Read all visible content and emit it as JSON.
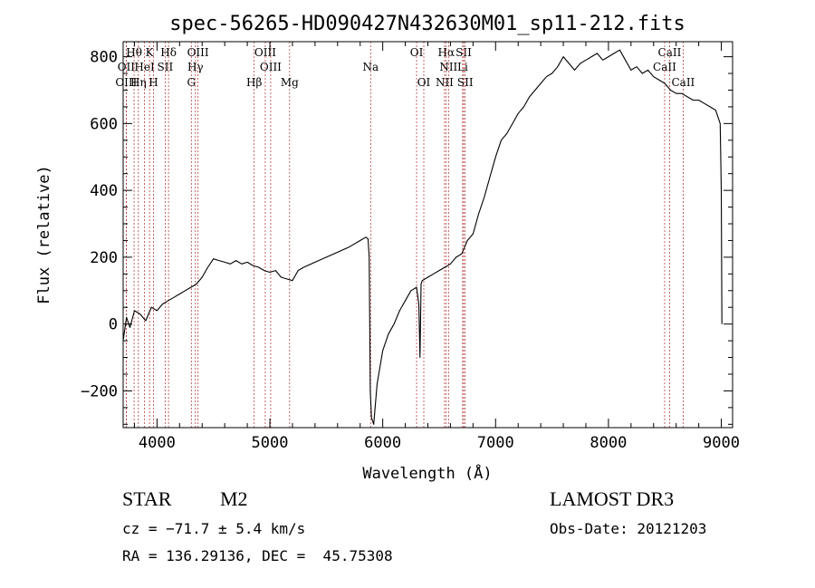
{
  "chart_data": {
    "type": "line",
    "title": "spec-56265-HD090427N432630M01_sp11-212.fits",
    "xlabel": "Wavelength (Å)",
    "ylabel": "Flux (relative)",
    "xlim": [
      3700,
      9100
    ],
    "ylim": [
      -310,
      845
    ],
    "xticks": [
      4000,
      5000,
      6000,
      7000,
      8000,
      9000
    ],
    "xtick_labels": [
      "4000",
      "5000",
      "6000",
      "7000",
      "8000",
      "9000"
    ],
    "yticks": [
      -200,
      0,
      200,
      400,
      600,
      800
    ],
    "ytick_labels": [
      "−200",
      "0",
      "200",
      "400",
      "600",
      "800"
    ],
    "series": [
      {
        "name": "spectrum",
        "x": [
          3700,
          3730,
          3760,
          3800,
          3850,
          3900,
          3950,
          4000,
          4050,
          4100,
          4150,
          4200,
          4250,
          4300,
          4350,
          4400,
          4450,
          4500,
          4550,
          4600,
          4650,
          4700,
          4750,
          4800,
          4850,
          4900,
          4950,
          5000,
          5050,
          5100,
          5150,
          5200,
          5250,
          5300,
          5400,
          5500,
          5600,
          5700,
          5800,
          5850,
          5870,
          5880,
          5890,
          5900,
          5920,
          5950,
          6000,
          6050,
          6100,
          6150,
          6200,
          6250,
          6300,
          6320,
          6330,
          6340,
          6350,
          6400,
          6450,
          6500,
          6550,
          6600,
          6650,
          6700,
          6750,
          6800,
          6850,
          6900,
          6950,
          7000,
          7050,
          7100,
          7150,
          7200,
          7250,
          7300,
          7350,
          7400,
          7450,
          7500,
          7550,
          7600,
          7650,
          7700,
          7750,
          7800,
          7850,
          7900,
          7950,
          8000,
          8050,
          8100,
          8150,
          8200,
          8250,
          8300,
          8350,
          8400,
          8450,
          8500,
          8550,
          8600,
          8650,
          8700,
          8750,
          8800,
          8850,
          8900,
          8950,
          8990,
          9000,
          9005
        ],
        "y": [
          -50,
          20,
          -10,
          40,
          30,
          10,
          50,
          40,
          60,
          70,
          80,
          90,
          100,
          110,
          120,
          140,
          170,
          195,
          190,
          185,
          180,
          190,
          180,
          185,
          175,
          170,
          160,
          155,
          160,
          140,
          135,
          130,
          160,
          170,
          185,
          200,
          215,
          230,
          250,
          260,
          255,
          200,
          -200,
          -280,
          -300,
          -180,
          -80,
          -30,
          0,
          40,
          70,
          100,
          110,
          60,
          -100,
          120,
          130,
          140,
          150,
          160,
          170,
          180,
          200,
          210,
          250,
          270,
          330,
          380,
          440,
          500,
          550,
          570,
          600,
          630,
          650,
          680,
          700,
          720,
          740,
          750,
          770,
          800,
          780,
          760,
          780,
          790,
          800,
          810,
          790,
          800,
          810,
          820,
          790,
          760,
          770,
          750,
          760,
          740,
          730,
          720,
          700,
          690,
          690,
          680,
          670,
          670,
          660,
          650,
          640,
          600,
          400,
          0
        ]
      }
    ],
    "lines": [
      {
        "label": "Hθ",
        "wave": 3797,
        "row": 1
      },
      {
        "label": "K",
        "wave": 3934,
        "row": 1
      },
      {
        "label": "Hδ",
        "wave": 4102,
        "row": 1
      },
      {
        "label": "OIII",
        "wave": 4363,
        "row": 1
      },
      {
        "label": "OIII",
        "wave": 4959,
        "row": 1
      },
      {
        "label": "OI",
        "wave": 6300,
        "row": 1
      },
      {
        "label": "Hα",
        "wave": 6563,
        "row": 1
      },
      {
        "label": "SII",
        "wave": 6717,
        "row": 1
      },
      {
        "label": "CaII",
        "wave": 8542,
        "row": 1
      },
      {
        "label": "OII",
        "wave": 3727,
        "row": 2
      },
      {
        "label": "HeI",
        "wave": 3889,
        "row": 2
      },
      {
        "label": "SII",
        "wave": 4072,
        "row": 2
      },
      {
        "label": "Hγ",
        "wave": 4340,
        "row": 2
      },
      {
        "label": "OIII",
        "wave": 5007,
        "row": 2
      },
      {
        "label": "NII",
        "wave": 6583,
        "row": 2
      },
      {
        "label": "Li",
        "wave": 6708,
        "row": 2
      },
      {
        "label": "CaII",
        "wave": 8498,
        "row": 2
      },
      {
        "label": "OIII",
        "wave": 3727,
        "row": 3
      },
      {
        "label": "Hη",
        "wave": 3835,
        "row": 3
      },
      {
        "label": "H",
        "wave": 3969,
        "row": 3
      },
      {
        "label": "G",
        "wave": 4304,
        "row": 3
      },
      {
        "label": "Hβ",
        "wave": 4861,
        "row": 3
      },
      {
        "label": "Mg",
        "wave": 5175,
        "row": 3
      },
      {
        "label": "Na",
        "wave": 5893,
        "row": 2
      },
      {
        "label": "OI",
        "wave": 6364,
        "row": 3
      },
      {
        "label": "NII",
        "wave": 6548,
        "row": 3
      },
      {
        "label": "SII",
        "wave": 6731,
        "row": 3
      },
      {
        "label": "CaII",
        "wave": 8662,
        "row": 3
      }
    ]
  },
  "info": {
    "object_class": "STAR",
    "subclass": "M2",
    "survey": "LAMOST DR3",
    "cz": "cz = −71.7 ± 5.4 km/s",
    "obs_date": "Obs-Date: 20121203",
    "coords": "RA = 136.29136, DEC =  45.75308"
  }
}
